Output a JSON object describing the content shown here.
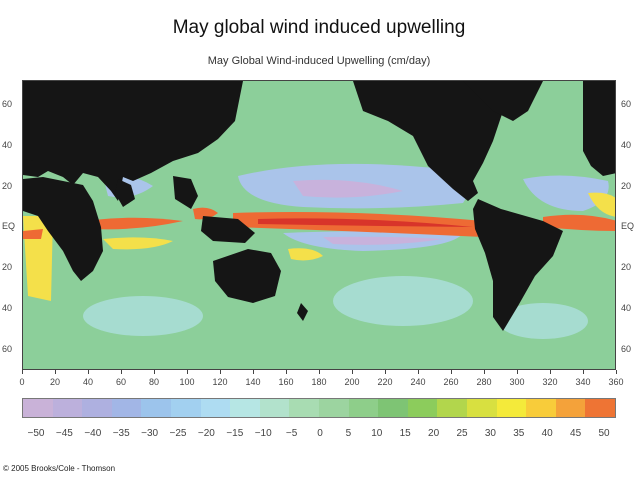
{
  "slide_title": "May global wind induced upwelling",
  "map_title": "May Global Wind-induced Upwelling (cm/day)",
  "lat_labels": [
    "60",
    "40",
    "20",
    "EQ",
    "20",
    "40",
    "60"
  ],
  "lon_labels": [
    "0",
    "20",
    "40",
    "60",
    "80",
    "100",
    "120",
    "140",
    "160",
    "180",
    "200",
    "220",
    "240",
    "260",
    "280",
    "300",
    "320",
    "340",
    "360"
  ],
  "colorbar": {
    "labels": [
      "−50",
      "−45",
      "−40",
      "−35",
      "−30",
      "−25",
      "−20",
      "−15",
      "−10",
      "−5",
      "0",
      "5",
      "10",
      "15",
      "20",
      "25",
      "30",
      "35",
      "40",
      "45",
      "50"
    ],
    "colors": [
      "#c9b2d8",
      "#bcb0dc",
      "#aeb0e0",
      "#a2b6e6",
      "#9cc4ec",
      "#a2d0f0",
      "#aedcf2",
      "#b6e6e4",
      "#b2e2cc",
      "#a8dcb2",
      "#9cd4a0",
      "#8ece8a",
      "#7ec474",
      "#8ccc5c",
      "#b2d64c",
      "#d8e040",
      "#f4ea3a",
      "#f8cc3a",
      "#f4a23a",
      "#ee7434"
    ]
  },
  "map_colors": {
    "land": "#151515",
    "ocean_base": "#8ccf9a",
    "subtropical_low": "#a6dcd0",
    "downwelling": "#aac4ea",
    "strong_downwelling": "#c8b2dc",
    "moderate_upwelling": "#f4e04a",
    "strong_upwelling": "#ee6a34",
    "peak_upwelling": "#d8342a"
  },
  "copyright": "© 2005 Brooks/Cole - Thomson"
}
